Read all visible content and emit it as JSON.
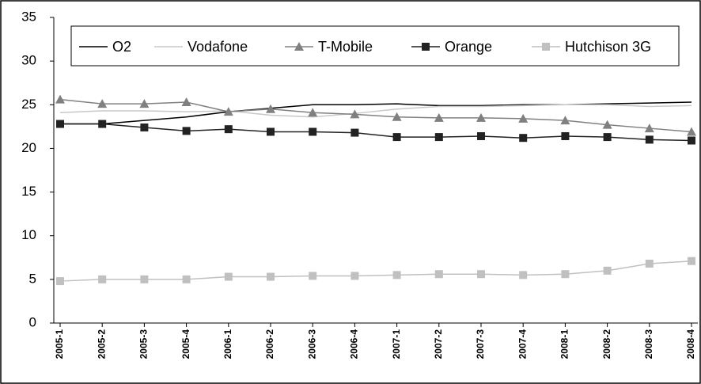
{
  "chart_data": {
    "type": "line",
    "categories": [
      "2005-1",
      "2005-2",
      "2005-3",
      "2005-4",
      "2006-1",
      "2006-2",
      "2006-3",
      "2006-4",
      "2007-1",
      "2007-2",
      "2007-3",
      "2007-4",
      "2008-1",
      "2008-2",
      "2008-3",
      "2008-4"
    ],
    "series": [
      {
        "name": "O2",
        "color": "#000000",
        "marker": "none",
        "values": [
          22.8,
          22.8,
          23.2,
          23.6,
          24.2,
          24.6,
          25.0,
          25.0,
          25.1,
          24.9,
          24.9,
          25.0,
          25.0,
          25.1,
          25.2,
          25.3
        ]
      },
      {
        "name": "Vodafone",
        "color": "#c8c8c8",
        "marker": "none",
        "values": [
          24.1,
          24.3,
          24.3,
          24.2,
          24.3,
          23.8,
          23.6,
          24.0,
          24.5,
          24.8,
          24.8,
          24.9,
          25.0,
          25.0,
          24.8,
          24.9
        ]
      },
      {
        "name": "T-Mobile",
        "color": "#808080",
        "marker": "triangle",
        "values": [
          25.6,
          25.1,
          25.1,
          25.3,
          24.2,
          24.5,
          24.1,
          23.9,
          23.6,
          23.5,
          23.5,
          23.4,
          23.2,
          22.7,
          22.3,
          21.9
        ]
      },
      {
        "name": "Orange",
        "color": "#222222",
        "marker": "square",
        "values": [
          22.8,
          22.8,
          22.4,
          22.0,
          22.2,
          21.9,
          21.9,
          21.8,
          21.3,
          21.3,
          21.4,
          21.2,
          21.4,
          21.3,
          21.0,
          20.9
        ]
      },
      {
        "name": "Hutchison 3G",
        "color": "#c0c0c0",
        "marker": "square",
        "values": [
          4.8,
          5.0,
          5.0,
          5.0,
          5.3,
          5.3,
          5.4,
          5.4,
          5.5,
          5.6,
          5.6,
          5.5,
          5.6,
          6.0,
          6.8,
          7.1
        ]
      }
    ],
    "ylim": [
      0,
      35
    ],
    "yticks": [
      0,
      5,
      10,
      15,
      20,
      25,
      30,
      35
    ],
    "legend": "top"
  }
}
